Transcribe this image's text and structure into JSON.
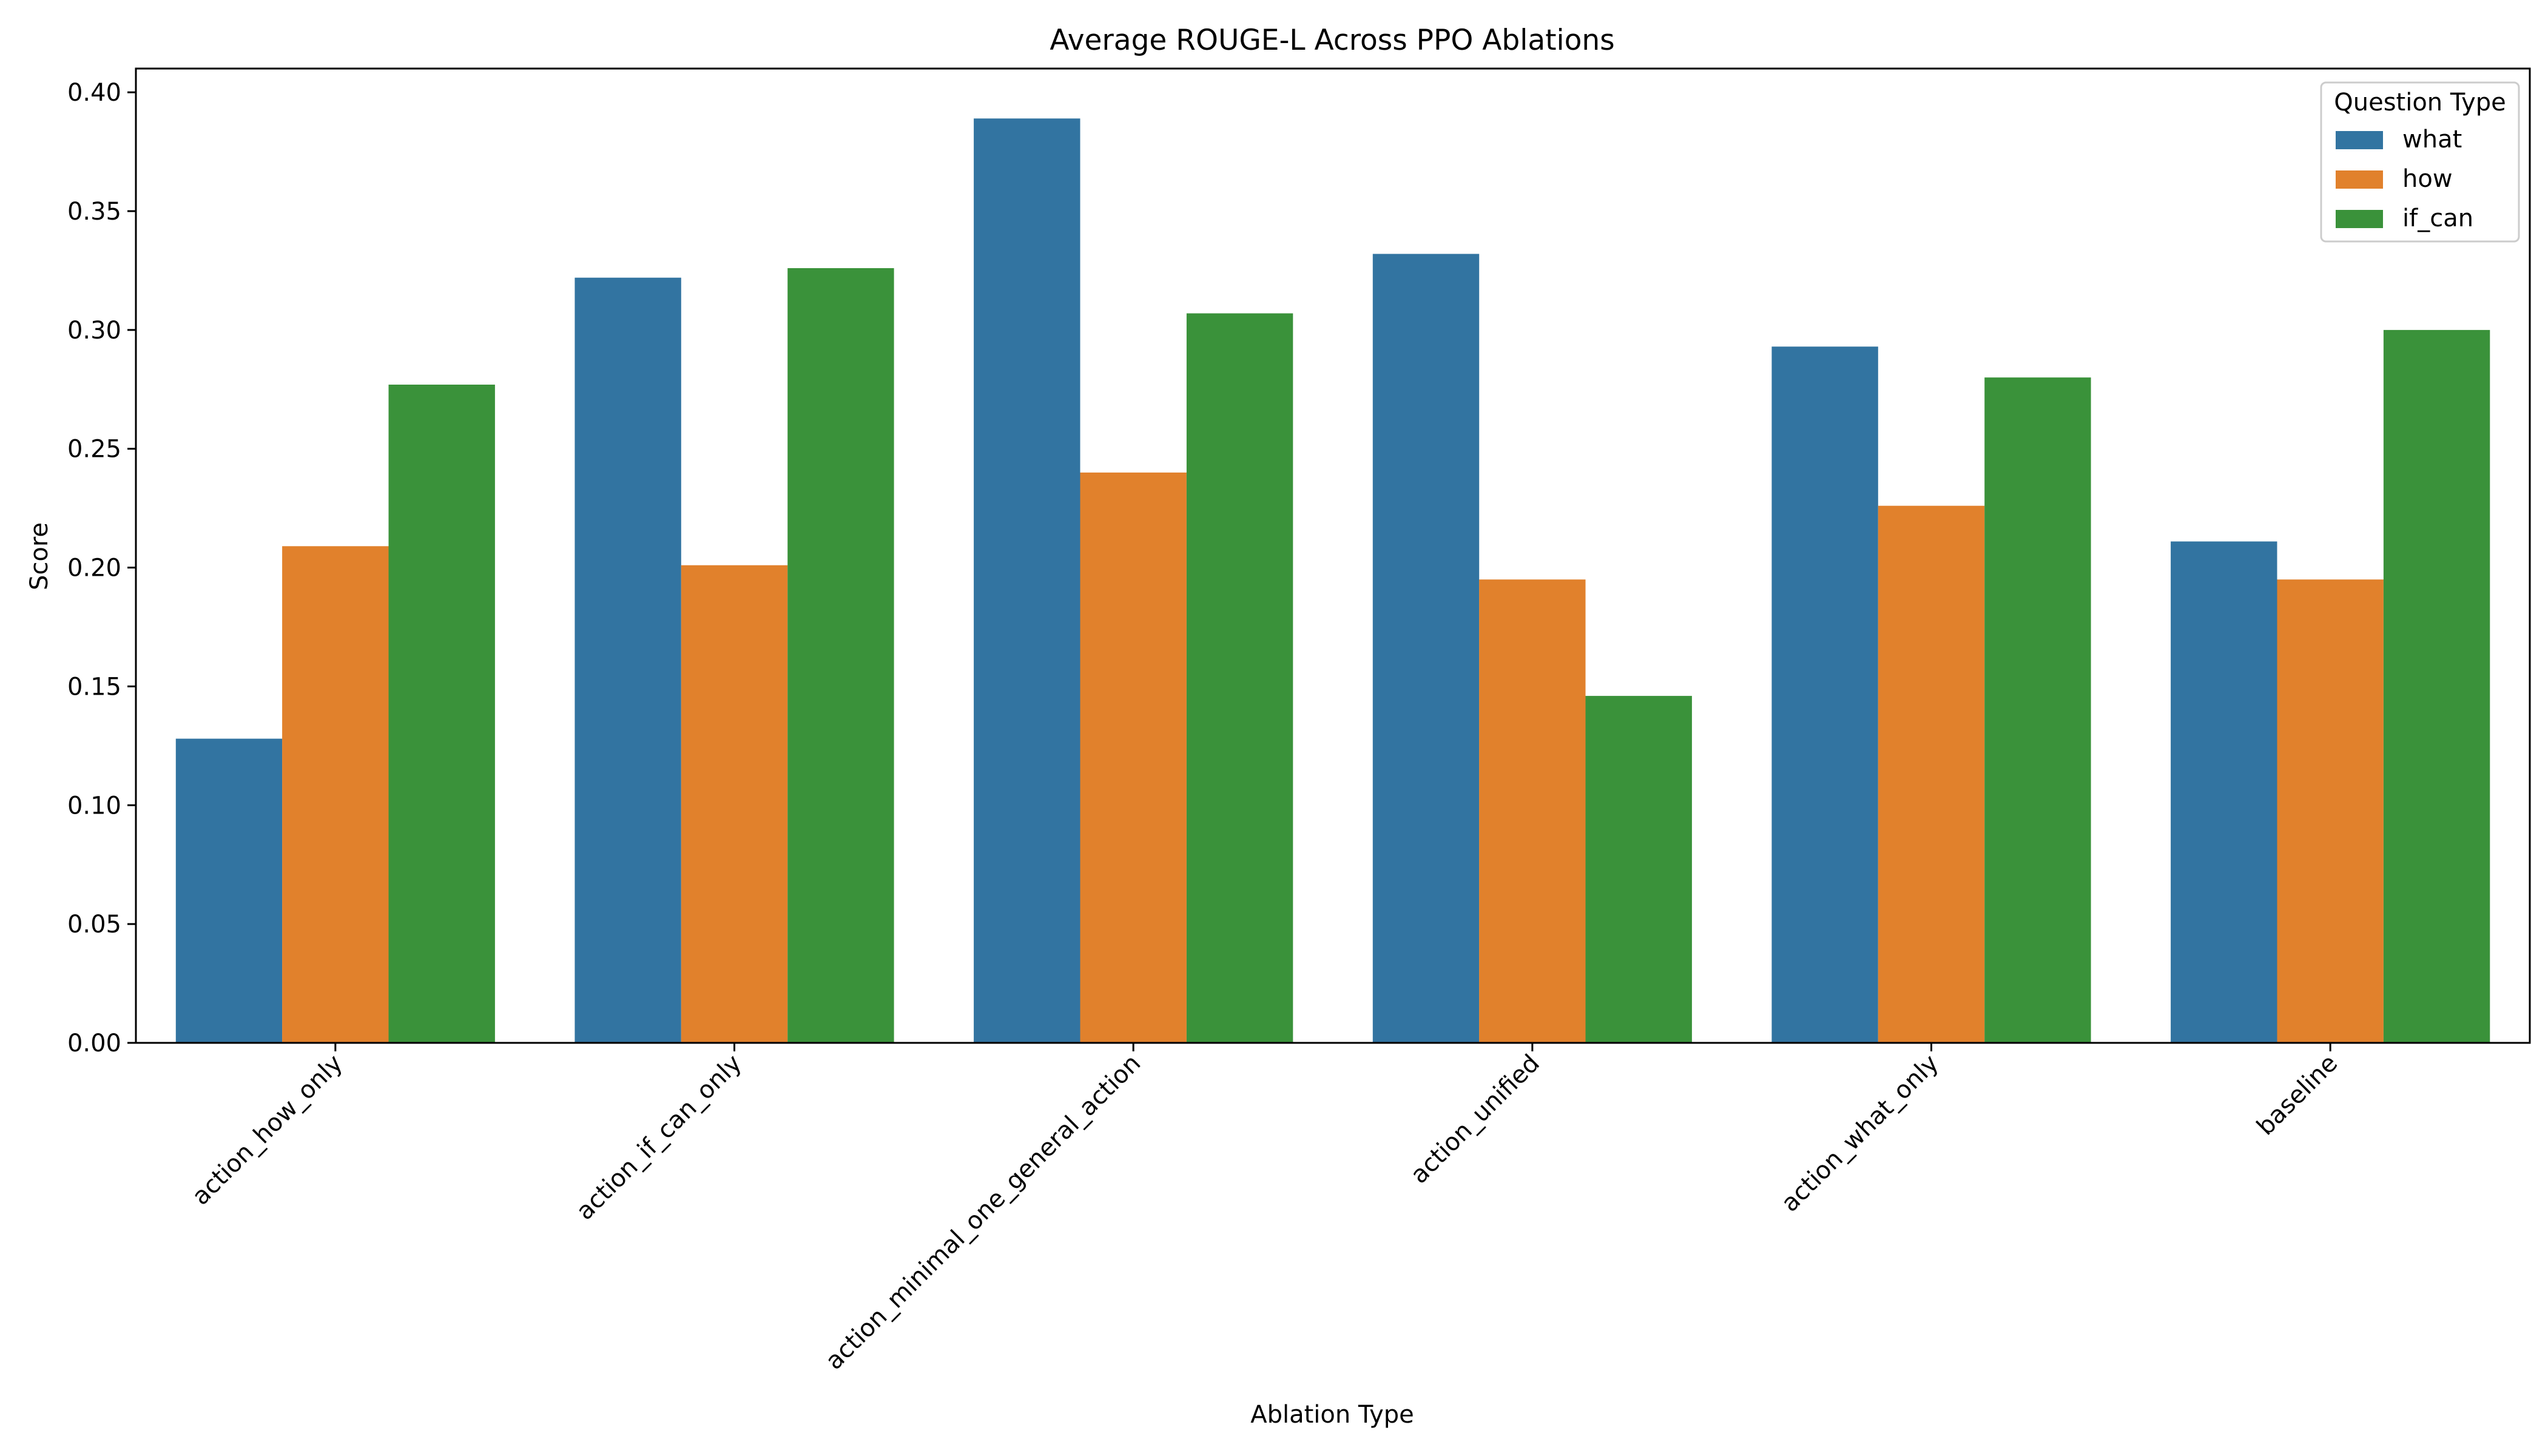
{
  "chart_data": {
    "type": "bar",
    "title": "Average ROUGE-L Across PPO Ablations",
    "xlabel": "Ablation Type",
    "ylabel": "Score",
    "ylim": [
      0,
      0.41
    ],
    "yticks": [
      "0.00",
      "0.05",
      "0.10",
      "0.15",
      "0.20",
      "0.25",
      "0.30",
      "0.35",
      "0.40"
    ],
    "categories": [
      "action_how_only",
      "action_if_can_only",
      "action_minimal_one_general_action",
      "action_unified",
      "action_what_only",
      "baseline"
    ],
    "series": [
      {
        "name": "what",
        "color": "#3274a1",
        "values": [
          0.128,
          0.322,
          0.389,
          0.332,
          0.293,
          0.211
        ]
      },
      {
        "name": "how",
        "color": "#e1812c",
        "values": [
          0.209,
          0.201,
          0.24,
          0.195,
          0.226,
          0.195
        ]
      },
      {
        "name": "if_can",
        "color": "#3a923a",
        "values": [
          0.277,
          0.326,
          0.307,
          0.146,
          0.28,
          0.3
        ]
      }
    ],
    "legend": {
      "title": "Question Type",
      "position": "top-right"
    },
    "grid": false
  }
}
